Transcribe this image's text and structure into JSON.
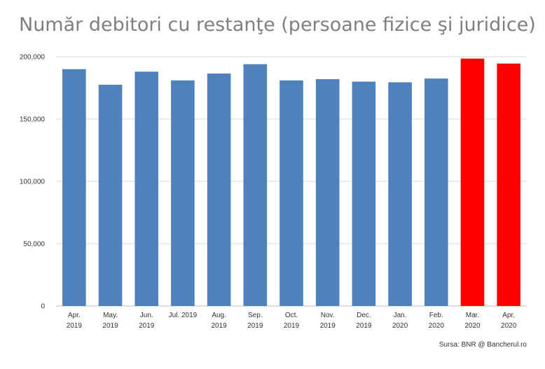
{
  "chart_data": {
    "type": "bar",
    "title": "Număr debitori cu restanţe (persoane fizice şi juridice)",
    "xlabel": "",
    "ylabel": "",
    "ylim": [
      0,
      200000
    ],
    "y_ticks": [
      0,
      50000,
      100000,
      150000,
      200000
    ],
    "y_tick_labels": [
      "0",
      "50,000",
      "100,000",
      "150,000",
      "200,000"
    ],
    "grid": true,
    "legend": "none",
    "categories": [
      [
        "Apr.",
        "2019"
      ],
      [
        "May.",
        "2019"
      ],
      [
        "Jun.",
        "2019"
      ],
      [
        "Jul. 2019"
      ],
      [
        "Aug.",
        "2019"
      ],
      [
        "Sep.",
        "2019"
      ],
      [
        "Oct.",
        "2019"
      ],
      [
        "Nov.",
        "2019"
      ],
      [
        "Dec.",
        "2019"
      ],
      [
        "Jan.",
        "2020"
      ],
      [
        "Feb.",
        "2020"
      ],
      [
        "Mar.",
        "2020"
      ],
      [
        "Apr.",
        "2020"
      ]
    ],
    "values": [
      190000,
      177500,
      188000,
      181000,
      186500,
      194000,
      181000,
      182000,
      180000,
      179500,
      182500,
      198500,
      194500
    ],
    "bar_colors": [
      "#4f81bd",
      "#4f81bd",
      "#4f81bd",
      "#4f81bd",
      "#4f81bd",
      "#4f81bd",
      "#4f81bd",
      "#4f81bd",
      "#4f81bd",
      "#4f81bd",
      "#4f81bd",
      "#ff0000",
      "#ff0000"
    ]
  },
  "source": "Sursa: BNR @ Bancherul.ro",
  "colors": {
    "grid": "#d9d9d9",
    "axis": "#bfbfbf",
    "title": "#7f7f7f"
  }
}
